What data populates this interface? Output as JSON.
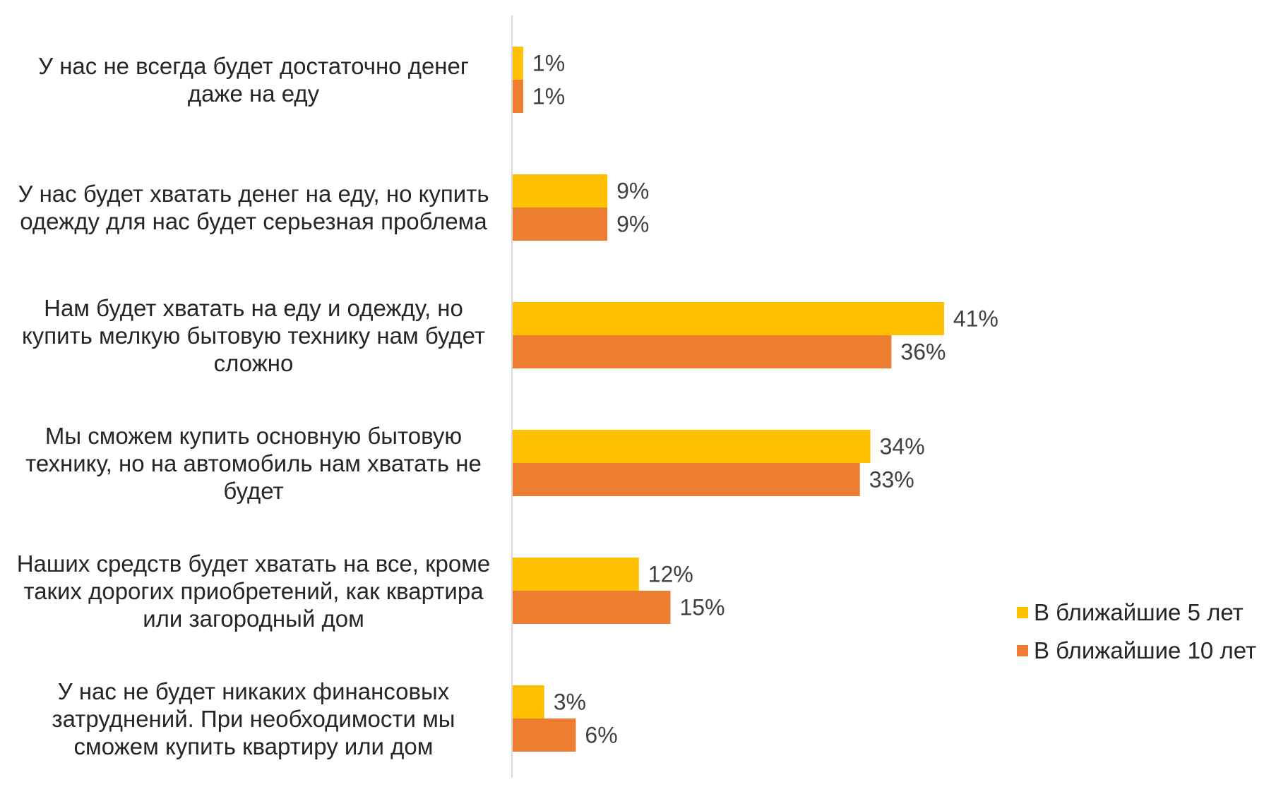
{
  "chart_data": {
    "type": "bar",
    "orientation": "horizontal",
    "title": "",
    "xlabel": "",
    "ylabel": "",
    "xlim": [
      0,
      50
    ],
    "grid": false,
    "legend_position": "right",
    "categories": [
      "У нас не всегда будет достаточно денег\nдаже на еду",
      "У нас будет хватать денег на еду, но купить\nодежду для нас будет серьезная проблема",
      "Нам будет хватать на еду и одежду, но\nкупить мелкую бытовую технику нам будет\nсложно",
      "Мы сможем купить основную бытовую\nтехнику, но на автомобиль нам хватать не\nбудет",
      "Наших средств будет хватать на все, кроме\nтаких дорогих приобретений, как квартира\nили загородный дом",
      "У нас не будет никаких финансовых\nзатруднений. При необходимости мы\nсможем купить квартиру или дом"
    ],
    "series": [
      {
        "name": "В ближайшие 5 лет",
        "color": "#FFC000",
        "values": [
          1,
          9,
          41,
          34,
          12,
          3
        ],
        "labels": [
          "1%",
          "9%",
          "41%",
          "34%",
          "12%",
          "3%"
        ]
      },
      {
        "name": "В ближайшие 10 лет",
        "color": "#ED7D31",
        "values": [
          1,
          9,
          36,
          33,
          15,
          6
        ],
        "labels": [
          "1%",
          "9%",
          "36%",
          "33%",
          "15%",
          "6%"
        ]
      }
    ]
  }
}
